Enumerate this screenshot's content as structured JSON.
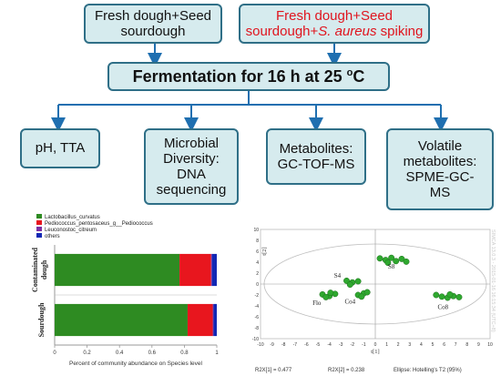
{
  "flow": {
    "input_left": [
      "Fresh dough+Seed",
      "sourdough"
    ],
    "input_right_line1": "Fresh dough+Seed",
    "input_right_line2_a": "sourdough+",
    "input_right_line2_b": "S. aureus",
    "input_right_line2_c": " spiking",
    "process_main": "Fermentation for 16 h at 25 ",
    "process_deg": "o",
    "process_unit": "C",
    "outputs": [
      [
        "pH, TTA"
      ],
      [
        "Microbial",
        "Diversity:",
        "DNA",
        "sequencing"
      ],
      [
        "Metabolites:",
        "GC-TOF-MS"
      ],
      [
        "Volatile",
        "metabolites:",
        "SPME-GC-",
        "MS"
      ]
    ],
    "colors": {
      "box_fill": "#d6ebee",
      "box_border": "#2f6f87",
      "highlight": "#e0141e",
      "arrow": "#1f6fb0"
    }
  },
  "chart_data": [
    {
      "type": "bar",
      "orientation": "horizontal-stacked",
      "categories": [
        "Contaminated dough",
        "Sourdough"
      ],
      "series": [
        {
          "name": "Lactobacillus_curvatus",
          "color": "#2e8b22",
          "values": [
            0.77,
            0.82
          ]
        },
        {
          "name": "Pediococcus_pentosaceus_g__Pediococcus",
          "color": "#e8161e",
          "values": [
            0.195,
            0.155
          ]
        },
        {
          "name": "Leuconostoc_citreum",
          "color": "#7b2fa3",
          "values": [
            0.005,
            0.005
          ]
        },
        {
          "name": "others",
          "color": "#1228b4",
          "values": [
            0.03,
            0.02
          ]
        }
      ],
      "xlabel": "Percent of community abundance on Species level",
      "xlim": [
        0,
        1
      ],
      "xticks": [
        "0",
        "0.2",
        "0.4",
        "0.6",
        "0.8",
        "1"
      ],
      "legend": "top-left"
    },
    {
      "type": "scatter",
      "xlabel": "t[1]",
      "ylabel": "t[2]",
      "xlim": [
        -10,
        10
      ],
      "ylim": [
        -10,
        10
      ],
      "xticks": [
        "-10",
        "-9",
        "-8",
        "-7",
        "-6",
        "-5",
        "-4",
        "-3",
        "-2",
        "-1",
        "0",
        "1",
        "2",
        "3",
        "4",
        "5",
        "6",
        "7",
        "8",
        "9",
        "10"
      ],
      "yticks": [
        "-10",
        "-8",
        "-6",
        "-4",
        "-2",
        "0",
        "2",
        "4",
        "6",
        "8",
        "10"
      ],
      "group_labels": [
        {
          "text": "S8",
          "x": 1.4,
          "y": 2.8
        },
        {
          "text": "S4",
          "x": -3.3,
          "y": 1.2
        },
        {
          "text": "Flo",
          "x": -5.1,
          "y": -3.8
        },
        {
          "text": "Co4",
          "x": -2.2,
          "y": -3.6
        },
        {
          "text": "Co8",
          "x": 5.9,
          "y": -4.6
        }
      ],
      "points": [
        [
          0.4,
          4.7
        ],
        [
          0.9,
          4.4
        ],
        [
          1.4,
          4.8
        ],
        [
          1.8,
          4.2
        ],
        [
          2.3,
          4.6
        ],
        [
          2.7,
          4.1
        ],
        [
          1.1,
          3.9
        ],
        [
          -2.5,
          0.6
        ],
        [
          -2.0,
          0.3
        ],
        [
          -1.5,
          0.5
        ],
        [
          -2.2,
          -0.1
        ],
        [
          -4.6,
          -1.9
        ],
        [
          -4.0,
          -2.2
        ],
        [
          -3.5,
          -1.8
        ],
        [
          -3.9,
          -1.6
        ],
        [
          -4.3,
          -2.4
        ],
        [
          -1.5,
          -2.0
        ],
        [
          -1.0,
          -1.7
        ],
        [
          -0.7,
          -1.5
        ],
        [
          -1.2,
          -2.3
        ],
        [
          5.3,
          -2.0
        ],
        [
          5.8,
          -2.3
        ],
        [
          6.3,
          -2.5
        ],
        [
          6.8,
          -2.2
        ],
        [
          7.3,
          -2.4
        ],
        [
          6.5,
          -1.9
        ]
      ],
      "point_color": "#2fa82f",
      "footer_left": "R2X[1] = 0.477",
      "footer_mid": "R2X[2] = 0.238",
      "footer_right": "Ellipse: Hotelling's T2 (95%)",
      "watermark": "SIMCA 13.0.3 - 2015-01-16 16:15:34 (UTC+8)"
    }
  ]
}
